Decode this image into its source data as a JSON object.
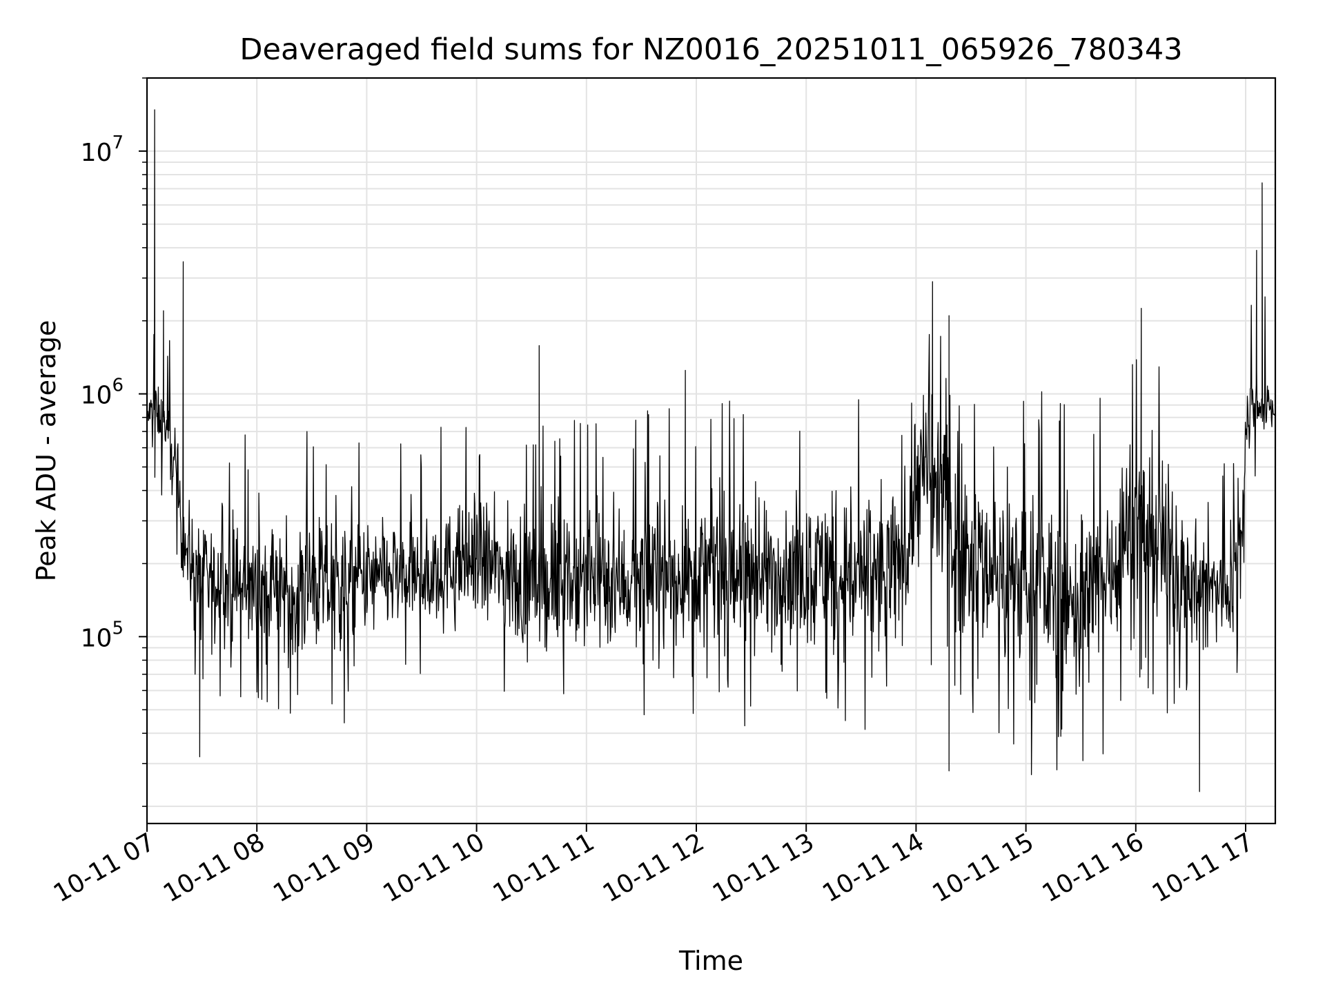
{
  "chart_data": {
    "type": "line",
    "title": "Deaveraged field sums for NZ0016_20251011_065926_780343",
    "xlabel": "Time",
    "ylabel": "Peak ADU - average",
    "yscale": "log",
    "ylim": [
      17000,
      20000000
    ],
    "xlim_hours": [
      7.0,
      17.27
    ],
    "grid": true,
    "x_tick_labels": [
      "10-11 07",
      "10-11 08",
      "10-11 09",
      "10-11 10",
      "10-11 11",
      "10-11 12",
      "10-11 13",
      "10-11 14",
      "10-11 15",
      "10-11 16",
      "10-11 17"
    ],
    "x_tick_hours": [
      7,
      8,
      9,
      10,
      11,
      12,
      13,
      14,
      15,
      16,
      17
    ],
    "y_tick_base": "10",
    "y_tick_exponents": [
      "5",
      "6",
      "7"
    ],
    "series": [
      {
        "name": "deaveraged field sum",
        "color": "#000000",
        "envelope": {
          "hours": [
            7.0,
            7.05,
            7.1,
            7.2,
            7.3,
            7.4,
            7.5,
            7.6,
            7.8,
            8.0,
            8.3,
            8.6,
            9.0,
            9.3,
            9.6,
            10.0,
            10.3,
            10.6,
            11.0,
            11.3,
            11.6,
            12.0,
            12.3,
            12.6,
            13.0,
            13.3,
            13.6,
            13.9,
            14.0,
            14.2,
            14.4,
            14.6,
            14.8,
            15.0,
            15.2,
            15.4,
            15.6,
            15.8,
            16.0,
            16.2,
            16.4,
            16.6,
            16.8,
            16.95,
            17.0,
            17.1,
            17.2,
            17.27
          ],
          "low": [
            650000,
            700000,
            600000,
            450000,
            180000,
            90000,
            80000,
            80000,
            80000,
            80000,
            75000,
            75000,
            80000,
            90000,
            90000,
            100000,
            80000,
            75000,
            80000,
            75000,
            75000,
            80000,
            75000,
            75000,
            80000,
            75000,
            70000,
            80000,
            150000,
            120000,
            80000,
            70000,
            60000,
            55000,
            50000,
            45000,
            45000,
            70000,
            110000,
            90000,
            75000,
            70000,
            70000,
            110000,
            500000,
            650000,
            650000,
            700000
          ],
          "high": [
            950000,
            1100000,
            1200000,
            1000000,
            650000,
            420000,
            350000,
            330000,
            320000,
            320000,
            330000,
            340000,
            350000,
            350000,
            350000,
            450000,
            380000,
            360000,
            380000,
            380000,
            400000,
            430000,
            430000,
            430000,
            480000,
            450000,
            430000,
            500000,
            1500000,
            1300000,
            700000,
            600000,
            550000,
            520000,
            480000,
            420000,
            450000,
            650000,
            900000,
            700000,
            450000,
            350000,
            330000,
            450000,
            1200000,
            1400000,
            1200000,
            1000000
          ]
        },
        "spikes": [
          {
            "hour": 7.07,
            "value": 14800000
          },
          {
            "hour": 7.33,
            "value": 3500000
          },
          {
            "hour": 7.15,
            "value": 2200000
          },
          {
            "hour": 7.48,
            "value": 32000
          },
          {
            "hour": 10.57,
            "value": 1580000
          },
          {
            "hour": 11.9,
            "value": 1250000
          },
          {
            "hour": 14.15,
            "value": 2900000
          },
          {
            "hour": 14.3,
            "value": 2100000
          },
          {
            "hour": 14.3,
            "value": 28000
          },
          {
            "hour": 15.05,
            "value": 27000
          },
          {
            "hour": 16.05,
            "value": 2250000
          },
          {
            "hour": 16.58,
            "value": 23000
          },
          {
            "hour": 17.1,
            "value": 3900000
          },
          {
            "hour": 17.15,
            "value": 7400000
          }
        ]
      }
    ]
  }
}
